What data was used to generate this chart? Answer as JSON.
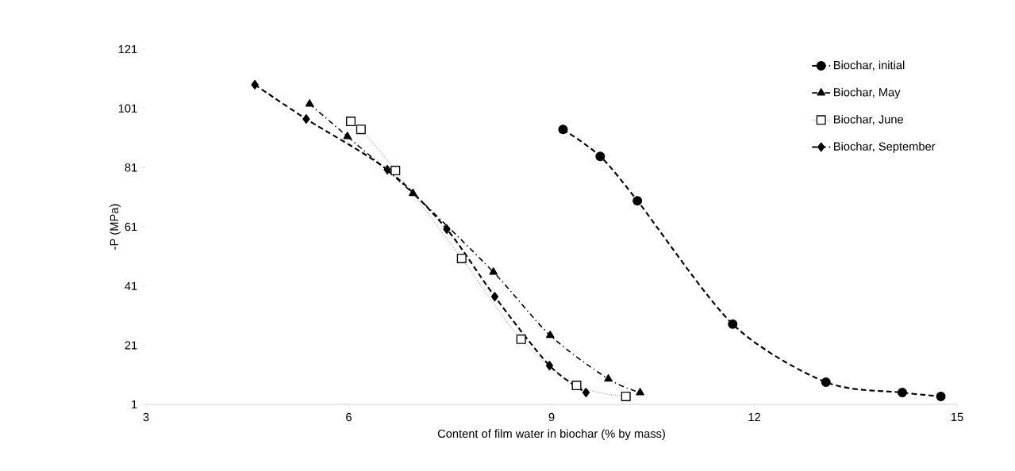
{
  "chart_data": {
    "type": "line",
    "xlabel": "Content of film water in biochar (% by mass)",
    "ylabel": "-P (MPa)",
    "xlim": [
      3,
      15
    ],
    "xticks": [
      3,
      6,
      9,
      12,
      15
    ],
    "ylim": [
      1,
      121
    ],
    "yticks": [
      1,
      21,
      41,
      61,
      81,
      101,
      121
    ],
    "grid": false,
    "legend": "top right",
    "series": [
      {
        "name": "Biochar, initial",
        "color": "#000000",
        "marker": "circle",
        "line_style": "dashed",
        "x": [
          9.17,
          9.72,
          10.27,
          11.68,
          13.06,
          14.19,
          14.76
        ],
        "values": [
          93.9,
          84.8,
          69.8,
          28.1,
          8.5,
          5.0,
          3.7
        ]
      },
      {
        "name": "Biochar, May",
        "color": "#000000",
        "marker": "triangle",
        "line_style": "dashdot",
        "x": [
          5.42,
          5.98,
          6.95,
          8.14,
          8.98,
          9.84,
          10.31
        ],
        "values": [
          102.5,
          91.5,
          72.3,
          45.7,
          24.3,
          9.6,
          5.0
        ]
      },
      {
        "name": "Biochar, June",
        "color": "#000000",
        "marker": "square",
        "line_style": "dotted",
        "x": [
          6.03,
          6.18,
          6.69,
          7.67,
          8.55,
          9.37,
          10.1
        ],
        "values": [
          96.6,
          93.9,
          80.0,
          50.3,
          23.0,
          7.4,
          3.7
        ]
      },
      {
        "name": "Biochar, September",
        "color": "#000000",
        "marker": "diamond",
        "line_style": "dashed",
        "x": [
          4.61,
          5.37,
          6.57,
          7.45,
          8.16,
          8.97,
          9.51
        ],
        "values": [
          109,
          97.4,
          80.3,
          60.2,
          37.4,
          14.1,
          5.0
        ]
      }
    ]
  }
}
